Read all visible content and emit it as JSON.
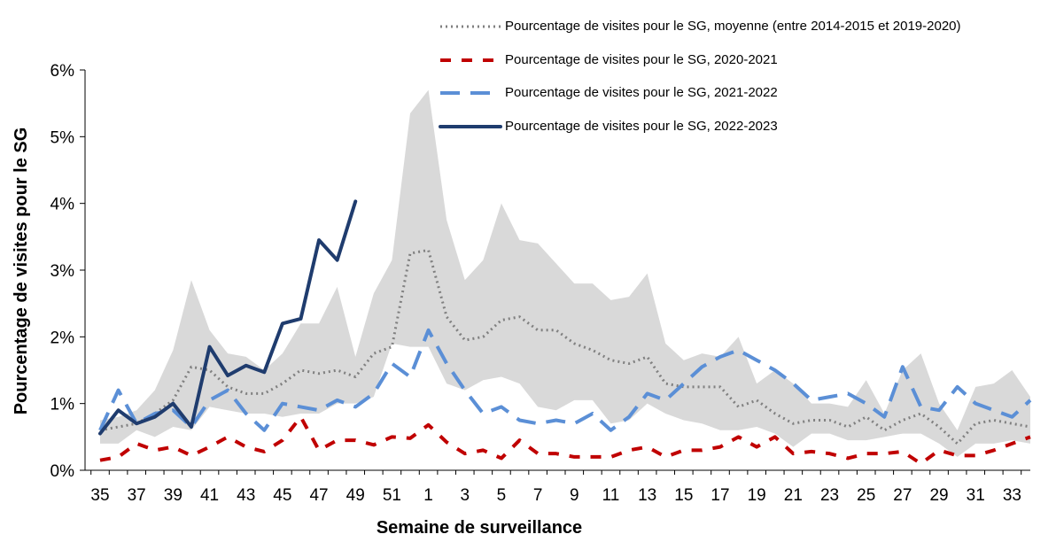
{
  "chart_data": {
    "type": "line",
    "x_label": "Semaine de surveillance",
    "y_label": "Pourcentage de visites pour le SG",
    "categories": [
      "35",
      null,
      "37",
      null,
      "39",
      null,
      "41",
      null,
      "43",
      null,
      "45",
      null,
      "47",
      null,
      "49",
      null,
      "51",
      null,
      "1",
      null,
      "3",
      null,
      "5",
      null,
      "7",
      null,
      "9",
      null,
      "11",
      null,
      "13",
      null,
      "15",
      null,
      "17",
      null,
      "19",
      null,
      "21",
      null,
      "23",
      null,
      "25",
      null,
      "27",
      null,
      "29",
      null,
      "31",
      null,
      "33",
      null
    ],
    "ylim": [
      0,
      6
    ],
    "yticks": [
      {
        "value": 0,
        "label": "0%"
      },
      {
        "value": 1,
        "label": "1%"
      },
      {
        "value": 2,
        "label": "2%"
      },
      {
        "value": 3,
        "label": "3%"
      },
      {
        "value": 4,
        "label": "4%"
      },
      {
        "value": 5,
        "label": "5%"
      },
      {
        "value": 6,
        "label": "6%"
      }
    ],
    "range": {
      "color": "#d9d9d9",
      "high": [
        0.75,
        0.8,
        0.9,
        1.2,
        1.8,
        2.85,
        2.1,
        1.75,
        1.7,
        1.5,
        1.75,
        2.2,
        2.2,
        2.75,
        1.7,
        2.65,
        3.15,
        5.35,
        5.7,
        3.75,
        2.85,
        3.15,
        4.0,
        3.45,
        3.4,
        3.1,
        2.8,
        2.8,
        2.55,
        2.6,
        2.95,
        1.9,
        1.65,
        1.75,
        1.7,
        2.0,
        1.3,
        1.5,
        1.3,
        1.0,
        1.0,
        0.95,
        1.35,
        0.85,
        1.5,
        1.75,
        1.0,
        0.6,
        1.25,
        1.3,
        1.5,
        1.1
      ],
      "low": [
        0.4,
        0.4,
        0.6,
        0.5,
        0.65,
        0.6,
        0.95,
        0.9,
        0.85,
        0.85,
        0.8,
        0.85,
        0.85,
        1.0,
        1.0,
        1.1,
        1.9,
        1.85,
        1.85,
        1.3,
        1.2,
        1.35,
        1.4,
        1.3,
        0.95,
        0.9,
        1.05,
        1.05,
        0.7,
        0.75,
        1.0,
        0.85,
        0.75,
        0.7,
        0.6,
        0.6,
        0.65,
        0.55,
        0.35,
        0.55,
        0.55,
        0.45,
        0.45,
        0.5,
        0.55,
        0.55,
        0.4,
        0.2,
        0.4,
        0.4,
        0.45,
        0.4
      ]
    },
    "series": [
      {
        "name": "Pourcentage de visites pour le SG, moyenne (entre 2014-2015 et 2019-2020)",
        "color": "#808080",
        "dash": "dotted",
        "values": [
          0.6,
          0.65,
          0.7,
          0.85,
          1.05,
          1.55,
          1.5,
          1.25,
          1.15,
          1.15,
          1.3,
          1.5,
          1.45,
          1.5,
          1.4,
          1.75,
          1.85,
          3.25,
          3.3,
          2.3,
          1.95,
          2.0,
          2.25,
          2.3,
          2.1,
          2.1,
          1.9,
          1.8,
          1.65,
          1.6,
          1.7,
          1.3,
          1.25,
          1.25,
          1.25,
          0.95,
          1.05,
          0.85,
          0.7,
          0.75,
          0.75,
          0.65,
          0.8,
          0.6,
          0.75,
          0.85,
          0.65,
          0.4,
          0.7,
          0.75,
          0.7,
          0.65
        ]
      },
      {
        "name": "Pourcentage de visites pour le SG, 2020-2021",
        "color": "#c00000",
        "dash": "dashed",
        "values": [
          0.15,
          0.2,
          0.4,
          0.3,
          0.35,
          0.22,
          0.35,
          0.5,
          0.35,
          0.28,
          0.45,
          0.8,
          0.3,
          0.45,
          0.45,
          0.38,
          0.5,
          0.48,
          0.68,
          0.42,
          0.25,
          0.3,
          0.18,
          0.45,
          0.25,
          0.25,
          0.2,
          0.2,
          0.2,
          0.3,
          0.35,
          0.2,
          0.3,
          0.3,
          0.35,
          0.5,
          0.35,
          0.5,
          0.25,
          0.28,
          0.25,
          0.18,
          0.25,
          0.25,
          0.28,
          0.1,
          0.3,
          0.22,
          0.22,
          0.3,
          0.4,
          0.5
        ]
      },
      {
        "name": "Pourcentage de visites pour le SG, 2021-2022",
        "color": "#5b8fd6",
        "dash": "longdash",
        "values": [
          0.6,
          1.2,
          0.7,
          0.85,
          0.9,
          0.65,
          1.05,
          1.2,
          0.85,
          0.6,
          1.0,
          0.95,
          0.9,
          1.05,
          0.95,
          1.15,
          1.6,
          1.4,
          2.1,
          1.6,
          1.2,
          0.85,
          0.95,
          0.75,
          0.7,
          0.75,
          0.7,
          0.85,
          0.6,
          0.8,
          1.15,
          1.05,
          1.3,
          1.55,
          1.7,
          1.8,
          1.65,
          1.5,
          1.3,
          1.05,
          1.1,
          1.15,
          1.0,
          0.8,
          1.55,
          0.95,
          0.9,
          1.25,
          1.0,
          0.9,
          0.8,
          1.05
        ]
      },
      {
        "name": "Pourcentage de visites pour le SG, 2022-2023",
        "color": "#1f3c6e",
        "dash": "solid",
        "values": [
          0.55,
          0.9,
          0.7,
          0.8,
          1.0,
          0.65,
          1.85,
          1.42,
          1.57,
          1.47,
          2.2,
          2.27,
          3.45,
          3.15,
          4.03,
          null,
          null,
          null,
          null,
          null,
          null,
          null,
          null,
          null,
          null,
          null,
          null,
          null,
          null,
          null,
          null,
          null,
          null,
          null,
          null,
          null,
          null,
          null,
          null,
          null,
          null,
          null,
          null,
          null,
          null,
          null,
          null,
          null,
          null,
          null,
          null,
          null
        ]
      }
    ]
  }
}
